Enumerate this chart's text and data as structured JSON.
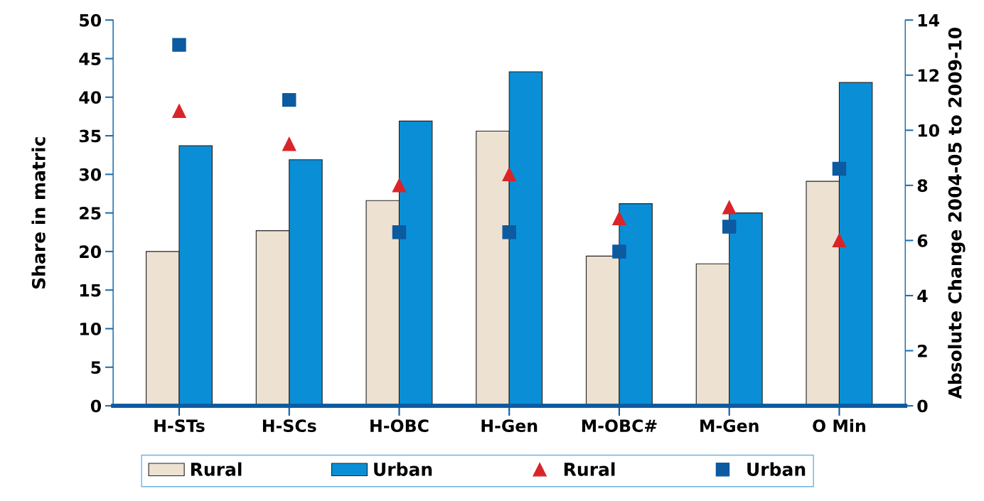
{
  "chart_data": {
    "type": "bar",
    "ylabel": "Share in matric",
    "y2label": "Absolute Change 2004-05 to 2009-10",
    "categories": [
      "H-STs",
      "H-SCs",
      "H-OBC",
      "H-Gen",
      "M-OBC#",
      "M-Gen",
      "O Min"
    ],
    "series": [
      {
        "name": "Rural",
        "color": "#ede1d1",
        "values": [
          20.0,
          22.7,
          26.6,
          35.6,
          19.4,
          18.4,
          29.1
        ]
      },
      {
        "name": "Urban",
        "color": "#0a8fd6",
        "values": [
          33.7,
          31.9,
          36.9,
          43.3,
          26.2,
          25.0,
          41.9
        ]
      },
      {
        "name": "Rural",
        "type": "scatter",
        "axis": "y2",
        "marker": "triangle",
        "color": "#d9252a",
        "values": [
          10.7,
          9.5,
          8.0,
          8.4,
          6.8,
          7.2,
          6.0
        ]
      },
      {
        "name": "Urban",
        "type": "scatter",
        "axis": "y2",
        "marker": "square",
        "color": "#0c5aa0",
        "values": [
          13.1,
          11.1,
          6.3,
          6.3,
          5.6,
          6.5,
          8.6
        ]
      }
    ],
    "ylim": [
      0,
      50
    ],
    "yticks": [
      0,
      5,
      10,
      15,
      20,
      25,
      30,
      35,
      40,
      45,
      50
    ],
    "y2lim": [
      0,
      14
    ],
    "y2ticks": [
      0,
      2,
      4,
      6,
      8,
      10,
      12,
      14
    ],
    "grid": false,
    "legend": "bottom"
  }
}
